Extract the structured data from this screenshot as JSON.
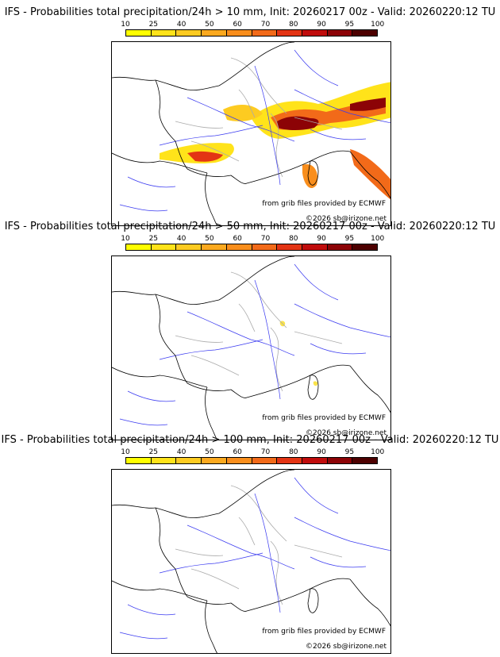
{
  "colorbar": {
    "ticks": [
      "10",
      "25",
      "40",
      "50",
      "60",
      "70",
      "80",
      "90",
      "95",
      "100"
    ],
    "colors": [
      "#ffff00",
      "#ffe31a",
      "#fdcb21",
      "#fba91f",
      "#f98e1c",
      "#f26a19",
      "#e33414",
      "#c00c0c",
      "#8c0306",
      "#4d0000"
    ]
  },
  "panels": [
    {
      "title": "IFS - Probabilities total precipitation/24h > 10 mm, Init: 20260217 00z - Valid: 20260220:12 TU",
      "credit_data": "from grib files provided by ECMWF",
      "credit_copyright": "©2026 sb@irizone.net",
      "precip_level": "high"
    },
    {
      "title": "IFS - Probabilities total precipitation/24h > 50 mm, Init: 20260217 00z - Valid: 20260220:12 TU",
      "credit_data": "from grib files provided by ECMWF",
      "credit_copyright": "©2026 sb@irizone.net",
      "precip_level": "low"
    },
    {
      "title": "IFS - Probabilities total precipitation/24h > 100 mm, Init: 20260217 00z - Valid: 20260220:12 TU",
      "credit_data": "from grib files provided by ECMWF",
      "credit_copyright": "©2026 sb@irizone.net",
      "precip_level": "none"
    }
  ]
}
